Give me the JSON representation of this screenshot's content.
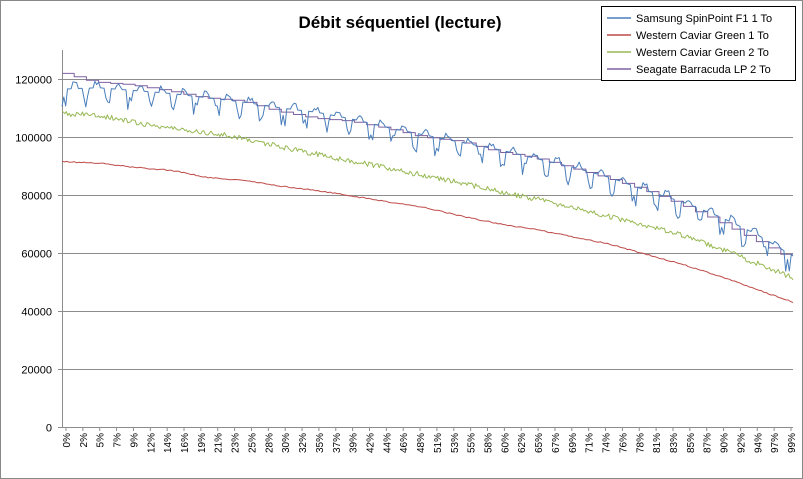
{
  "chart_data": {
    "type": "line",
    "title": "Débit séquentiel (lecture)",
    "xlabel": "",
    "ylabel": "",
    "ylim": [
      0,
      130000
    ],
    "yticks": [
      0,
      20000,
      40000,
      60000,
      80000,
      100000,
      120000
    ],
    "ytick_labels": [
      "0",
      "20000",
      "40000",
      "60000",
      "80000",
      "100000",
      "120000"
    ],
    "xtick_labels": [
      "0%",
      "2%",
      "5%",
      "7%",
      "9%",
      "12%",
      "14%",
      "16%",
      "19%",
      "21%",
      "23%",
      "25%",
      "28%",
      "30%",
      "32%",
      "35%",
      "37%",
      "39%",
      "42%",
      "44%",
      "46%",
      "48%",
      "51%",
      "53%",
      "55%",
      "58%",
      "60%",
      "62%",
      "65%",
      "67%",
      "69%",
      "71%",
      "74%",
      "76%",
      "78%",
      "81%",
      "83%",
      "85%",
      "87%",
      "90%",
      "92%",
      "94%",
      "97%",
      "99%"
    ],
    "grid": true,
    "legend_position": "top-right",
    "x": [
      0,
      5,
      10,
      15,
      20,
      25,
      30,
      35,
      40,
      45,
      50,
      55,
      60,
      65,
      70,
      75,
      80,
      85,
      90,
      95,
      100
    ],
    "series": [
      {
        "name": "Samsung SpinPoint F1 1 To",
        "color": "#4a7ebb",
        "values": [
          116500,
          117000,
          116000,
          115000,
          113500,
          112000,
          110000,
          108500,
          106000,
          103000,
          100500,
          98000,
          95500,
          92500,
          89500,
          86000,
          81500,
          77500,
          72500,
          66500,
          59000
        ]
      },
      {
        "name": "Western Caviar Green 1 To",
        "color": "#be4b48",
        "values": [
          91500,
          91000,
          89500,
          88500,
          86000,
          85000,
          83000,
          81500,
          79500,
          77500,
          75500,
          72500,
          70000,
          68000,
          65500,
          63000,
          59500,
          56000,
          52000,
          47500,
          43000
        ]
      },
      {
        "name": "Western Caviar Green 2 To",
        "color": "#98b954",
        "values": [
          108000,
          107500,
          105000,
          103000,
          101500,
          99500,
          96500,
          94000,
          91500,
          89000,
          86500,
          84000,
          81000,
          78500,
          75500,
          72500,
          69500,
          66000,
          61500,
          56500,
          51500
        ]
      },
      {
        "name": "Seagate Barracuda LP 2 To",
        "color": "#7d60a0",
        "values": [
          122500,
          119000,
          118000,
          116000,
          113500,
          112500,
          109000,
          106500,
          105500,
          103000,
          100000,
          98500,
          95000,
          93000,
          89500,
          86000,
          82000,
          77000,
          71500,
          65000,
          58500
        ]
      }
    ]
  }
}
